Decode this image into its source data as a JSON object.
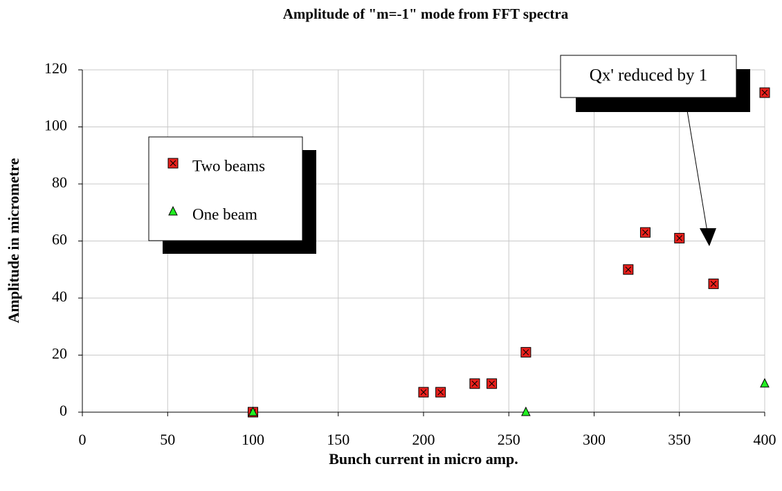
{
  "chart_data": {
    "type": "scatter",
    "title": "Amplitude of \"m=-1\" mode from FFT spectra",
    "x_label": "Bunch current in micro amp.",
    "y_label": "Amplitude in micrometre",
    "xlim": [
      0,
      400
    ],
    "xticks": [
      0,
      50,
      100,
      150,
      200,
      250,
      300,
      350,
      400
    ],
    "ylim": [
      0,
      120
    ],
    "yticks": [
      0,
      20,
      40,
      60,
      80,
      100,
      120
    ],
    "grid": true,
    "legend": "upper left",
    "annotation": "Qx' reduced by 1",
    "series": [
      {
        "name": "Two beams",
        "color": "#e8201c",
        "marker": "square",
        "x": [
          100,
          200,
          210,
          230,
          240,
          260,
          320,
          330,
          350,
          370,
          400
        ],
        "values": [
          0,
          7,
          7,
          10,
          10,
          21,
          50,
          63,
          61,
          45,
          112
        ]
      },
      {
        "name": "One beam",
        "color": "#22ee22",
        "marker": "triangle",
        "x": [
          100,
          260,
          400
        ],
        "values": [
          0,
          0,
          10
        ]
      }
    ]
  }
}
